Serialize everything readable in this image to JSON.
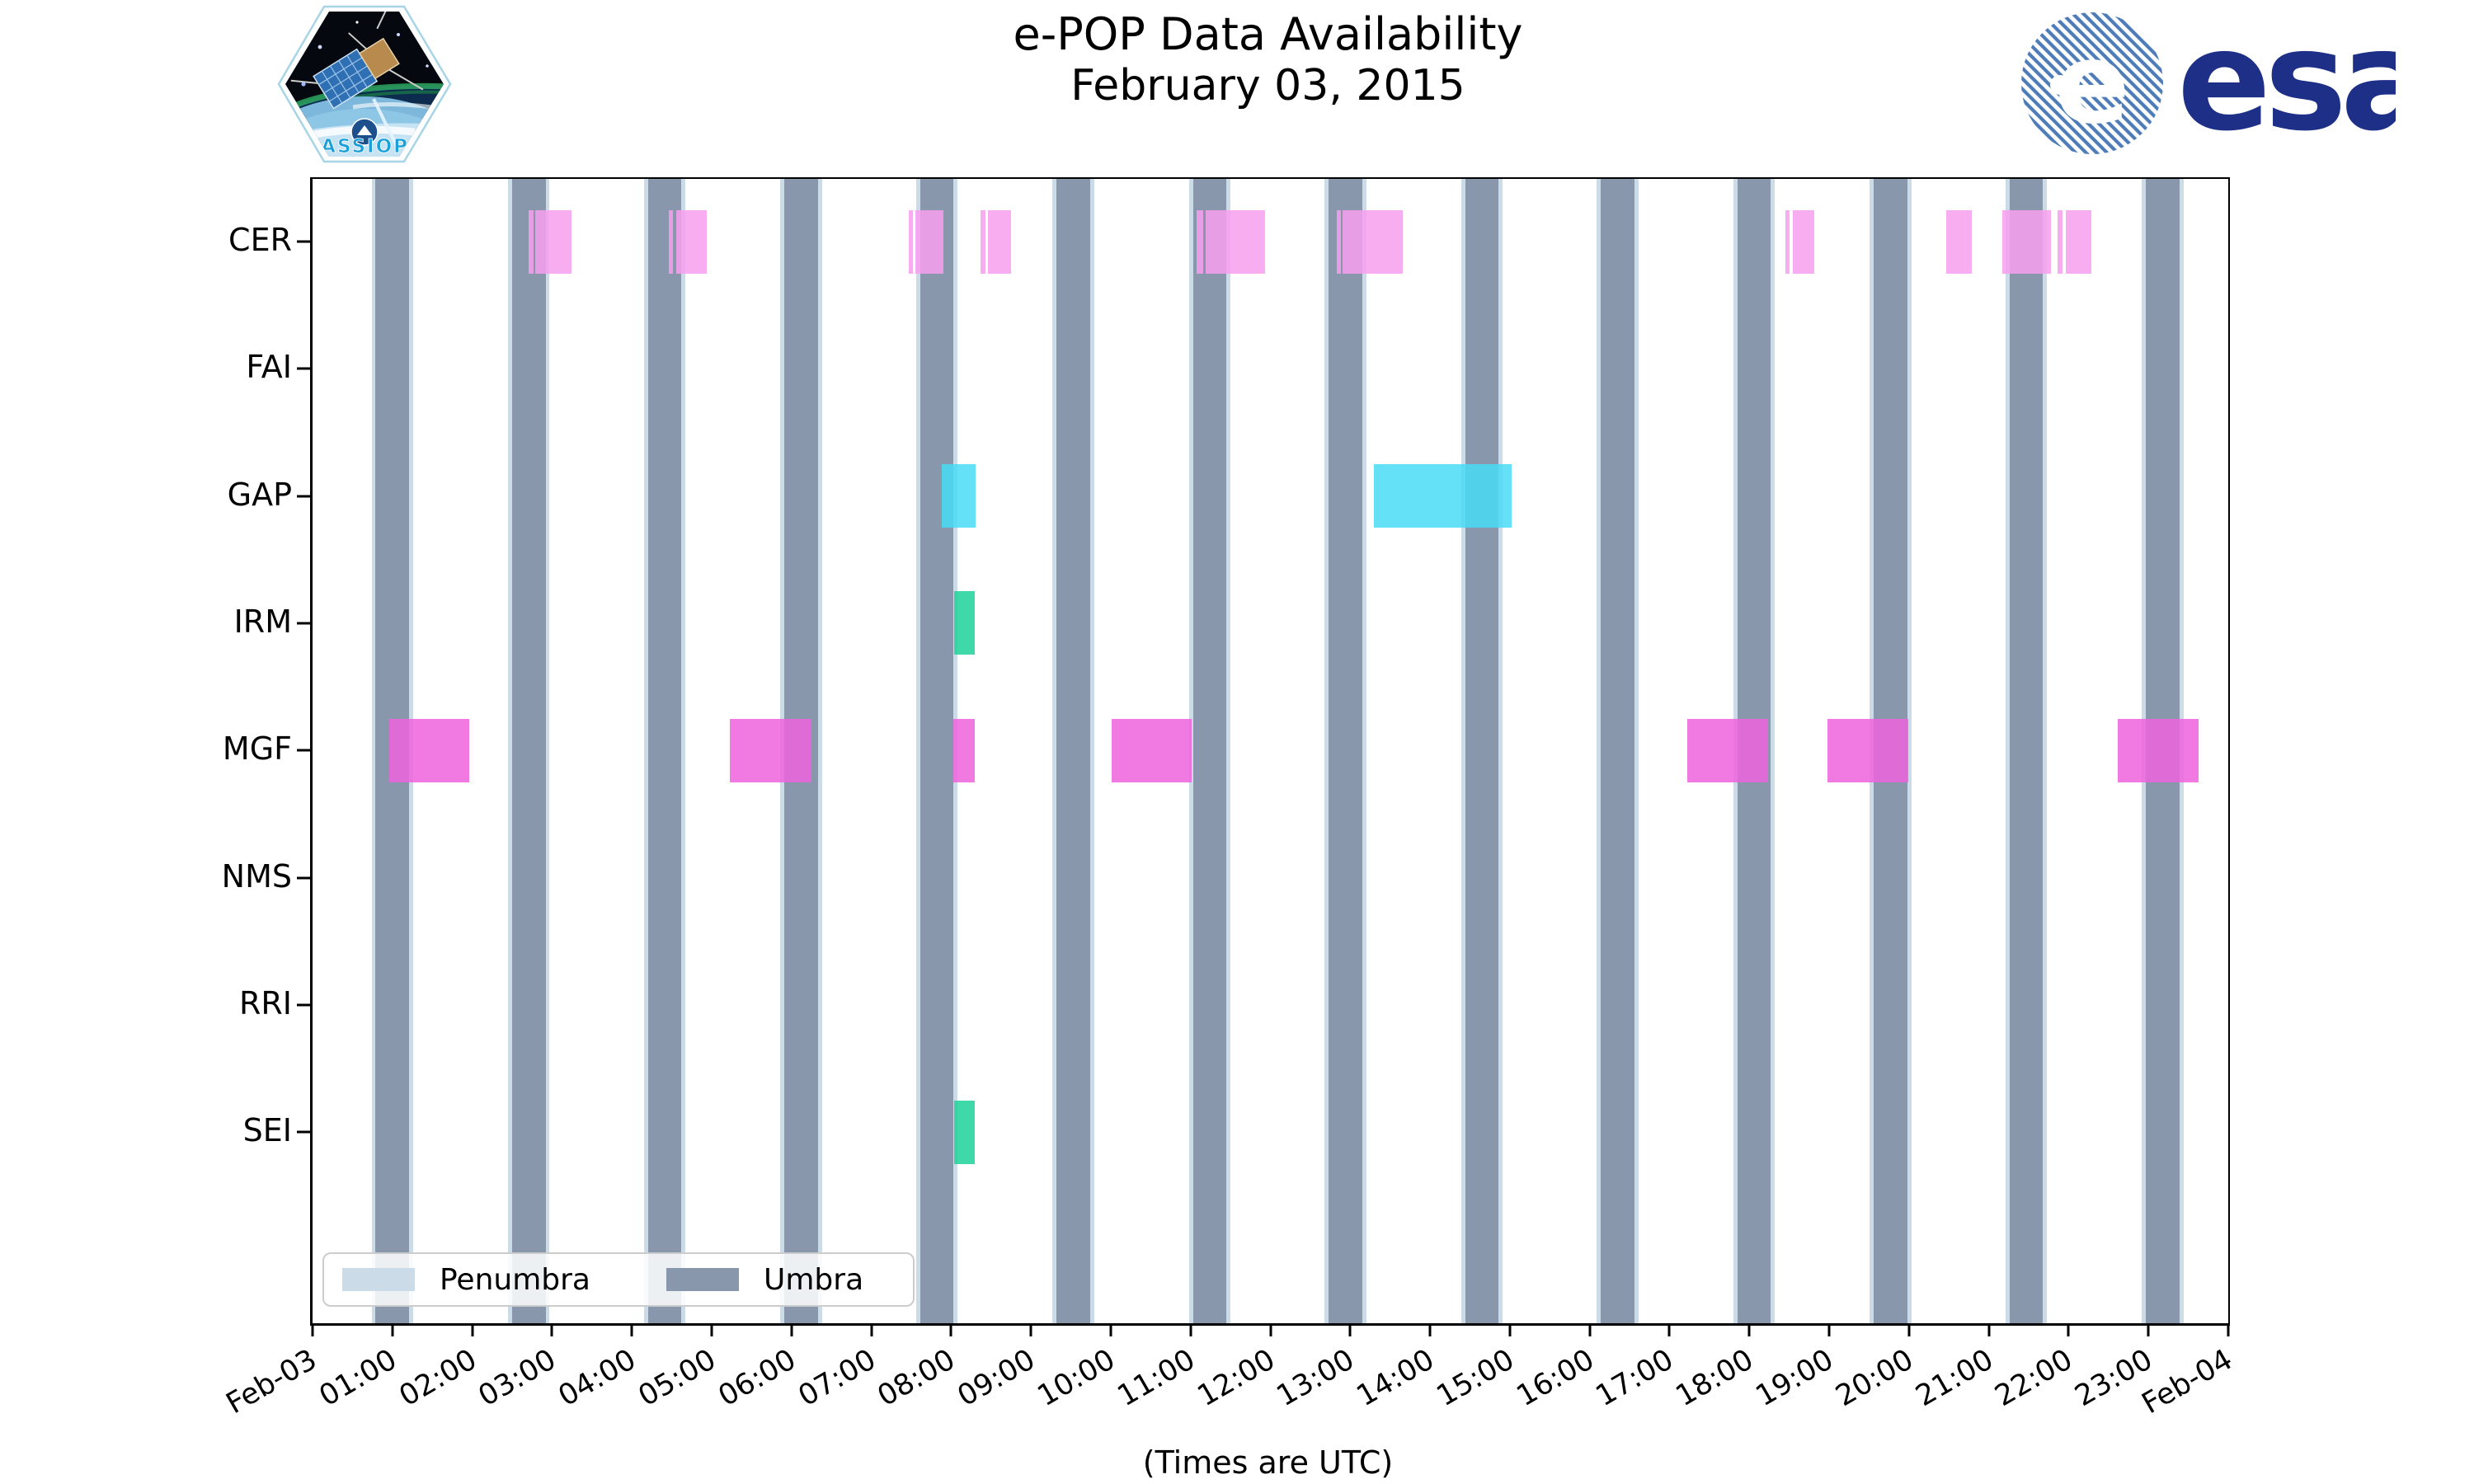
{
  "title": {
    "line1": "e-POP Data Availability",
    "line2": "February 03, 2015"
  },
  "xlabel": "(Times are UTC)",
  "legend": {
    "penumbra_label": "Penumbra",
    "umbra_label": "Umbra"
  },
  "logos": {
    "esa_text": "esa",
    "patch_text": "CASSIOPE"
  },
  "colors": {
    "umbra": "#8897ab",
    "penumbra": "#ccdbe8",
    "cer": "#f89fef",
    "gap": "#49daf6",
    "irm": "#1dd199",
    "mgf": "#ee63dd",
    "sei": "#1dd199",
    "esa_navy": "#1d2f87",
    "esa_stripe": "#4d7cb8",
    "patch_blue": "#1a9fd9"
  },
  "chart_data": {
    "type": "timeline",
    "title": "e-POP Data Availability February 03, 2015",
    "xlabel": "(Times are UTC)",
    "x_axis": {
      "start": "Feb-03 00:00 UTC",
      "end": "Feb-04 00:00 UTC",
      "hours_range": [
        0,
        24
      ],
      "tick_labels": [
        "Feb-03",
        "01:00",
        "02:00",
        "03:00",
        "04:00",
        "05:00",
        "06:00",
        "07:00",
        "08:00",
        "09:00",
        "10:00",
        "11:00",
        "12:00",
        "13:00",
        "14:00",
        "15:00",
        "16:00",
        "17:00",
        "18:00",
        "19:00",
        "20:00",
        "21:00",
        "22:00",
        "23:00",
        "Feb-04"
      ]
    },
    "instruments": [
      "CER",
      "FAI",
      "GAP",
      "IRM",
      "MGF",
      "NMS",
      "RRI",
      "SEI"
    ],
    "series": [
      {
        "name": "CER",
        "color": "#f89fef",
        "intervals_hours": [
          [
            2.71,
            2.77
          ],
          [
            2.79,
            3.24
          ],
          [
            4.46,
            4.52
          ],
          [
            4.56,
            4.94
          ],
          [
            7.47,
            7.52
          ],
          [
            7.55,
            7.9
          ],
          [
            8.37,
            8.43
          ],
          [
            8.46,
            8.75
          ],
          [
            11.08,
            11.16
          ],
          [
            11.19,
            11.93
          ],
          [
            12.83,
            12.88
          ],
          [
            12.9,
            13.66
          ],
          [
            18.45,
            18.5
          ],
          [
            18.54,
            18.81
          ],
          [
            20.47,
            20.79
          ],
          [
            21.17,
            21.78
          ],
          [
            21.86,
            21.92
          ],
          [
            21.96,
            22.28
          ]
        ]
      },
      {
        "name": "FAI",
        "color": "#f89fef",
        "intervals_hours": []
      },
      {
        "name": "GAP",
        "color": "#49daf6",
        "intervals_hours": [
          [
            7.88,
            8.31
          ],
          [
            13.3,
            15.02
          ]
        ]
      },
      {
        "name": "IRM",
        "color": "#1dd199",
        "intervals_hours": [
          [
            8.04,
            8.3
          ]
        ]
      },
      {
        "name": "MGF",
        "color": "#ee63dd",
        "intervals_hours": [
          [
            0.96,
            1.96
          ],
          [
            5.23,
            6.25
          ],
          [
            8.03,
            8.3
          ],
          [
            10.01,
            11.01
          ],
          [
            17.22,
            18.24
          ],
          [
            18.98,
            19.99
          ],
          [
            22.62,
            23.63
          ]
        ]
      },
      {
        "name": "NMS",
        "color": "#1dd199",
        "intervals_hours": []
      },
      {
        "name": "RRI",
        "color": "#f89fef",
        "intervals_hours": []
      },
      {
        "name": "SEI",
        "color": "#1dd199",
        "intervals_hours": [
          [
            8.04,
            8.3
          ]
        ]
      }
    ],
    "umbra": {
      "color": "#8897ab",
      "width_hours": 0.42,
      "centers_hours": [
        1.0,
        2.71,
        4.41,
        6.12,
        7.82,
        9.53,
        11.24,
        12.94,
        14.65,
        16.35,
        18.06,
        19.77,
        21.47,
        23.18
      ]
    },
    "penumbra": {
      "color": "#ccdbe8",
      "edge_width_hours": 0.05
    },
    "legend": {
      "position": "lower left inside plot",
      "entries": [
        "Penumbra",
        "Umbra"
      ]
    },
    "grid": false
  }
}
